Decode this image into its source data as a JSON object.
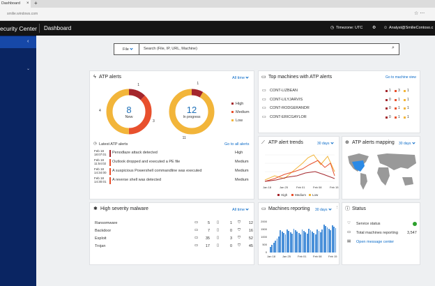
{
  "browser": {
    "tab": "Dashboard",
    "url": "smilie.windows.com"
  },
  "header": {
    "app": "ecurity Center",
    "page": "Dashboard",
    "timezone": "Timezone: UTC",
    "user": "Analyst@SmilieContoso.c"
  },
  "search": {
    "filter": "File",
    "placeholder": "Search (File, IP, URL, Machine)"
  },
  "atp_alerts": {
    "title": "ATP alerts",
    "range": "All time",
    "legend": [
      "High",
      "Medium",
      "Low"
    ],
    "donuts": [
      {
        "total": "8",
        "label": "New",
        "segments": [
          {
            "value": 1,
            "color": "#a4262c"
          },
          {
            "value": 3,
            "color": "#e8502d"
          },
          {
            "value": 4,
            "color": "#f2b53a"
          }
        ]
      },
      {
        "total": "12",
        "label": "In progress",
        "segments": [
          {
            "value": 1,
            "color": "#a4262c"
          },
          {
            "value": 11,
            "color": "#f2b53a"
          }
        ]
      }
    ],
    "latest_title": "Latest ATP alerts",
    "latest_link": "Go to all alerts",
    "latest": [
      {
        "date": "Feb 18",
        "time": "18:07:01",
        "text": "Penodlaze attack detected",
        "severity": "High"
      },
      {
        "date": "Feb 18",
        "time": "11:54:02",
        "text": "Outlook dropped and executed a PE file",
        "severity": "Medium"
      },
      {
        "date": "Feb 18",
        "time": "14:34:00",
        "text": "A suspicious Powershell commandline was executed",
        "severity": "Medium"
      },
      {
        "date": "Feb 18",
        "time": "14:30:01",
        "text": "A reverse shell was detected",
        "severity": "Medium"
      }
    ]
  },
  "top_machines": {
    "title": "Top machines with ATP alerts",
    "link": "Go to machine view",
    "rows": [
      {
        "name": "CONT-LIZBEAN",
        "counts": [
          "1",
          "3",
          "1"
        ]
      },
      {
        "name": "CONT-LILYJARVIS",
        "counts": [
          "0",
          "1",
          "1"
        ]
      },
      {
        "name": "CONT-RODGERANDR",
        "counts": [
          "0",
          "1",
          "1"
        ]
      },
      {
        "name": "CONT-ERICGAYLOR",
        "counts": [
          "0",
          "1",
          "1"
        ]
      }
    ]
  },
  "trends": {
    "title": "ATP alert trends",
    "range": "30 days",
    "x_labels": [
      "Jan 18",
      "Jan 25",
      "Feb 01",
      "Feb 08",
      "Feb 15"
    ],
    "legend": [
      "High",
      "Medium",
      "Low"
    ]
  },
  "mapping": {
    "title": "ATP alerts mapping",
    "range": "30 days"
  },
  "malware": {
    "title": "High severity malware",
    "range": "All time",
    "rows": [
      {
        "name": "Ransomware",
        "a": "5",
        "b": "1",
        "c": "12"
      },
      {
        "name": "Backdoor",
        "a": "7",
        "b": "0",
        "c": "16"
      },
      {
        "name": "Exploit",
        "a": "35",
        "b": "3",
        "c": "52"
      },
      {
        "name": "Trojan",
        "a": "17",
        "b": "0",
        "c": "45"
      }
    ]
  },
  "machines_reporting": {
    "title": "Machines reporting",
    "range": "30 days",
    "y_labels": [
      "2000",
      "1500",
      "1000",
      "500",
      "0"
    ],
    "x_labels": [
      "Jan 18",
      "Jan 25",
      "Feb 01",
      "Feb 08",
      "Feb 15"
    ]
  },
  "status": {
    "title": "Status",
    "service": "Service status",
    "total_label": "Total machines reporting",
    "total": "3,547",
    "link": "Open message center"
  }
}
